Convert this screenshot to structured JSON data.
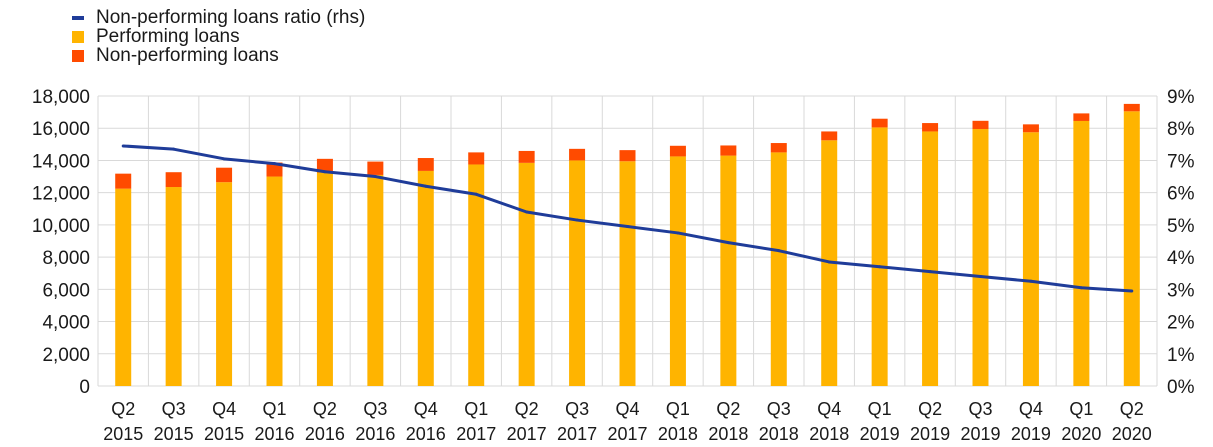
{
  "chart_data": {
    "type": "bar",
    "categories": [
      [
        "Q2",
        "2015"
      ],
      [
        "Q3",
        "2015"
      ],
      [
        "Q4",
        "2015"
      ],
      [
        "Q1",
        "2016"
      ],
      [
        "Q2",
        "2016"
      ],
      [
        "Q3",
        "2016"
      ],
      [
        "Q4",
        "2016"
      ],
      [
        "Q1",
        "2017"
      ],
      [
        "Q2",
        "2017"
      ],
      [
        "Q3",
        "2017"
      ],
      [
        "Q4",
        "2017"
      ],
      [
        "Q1",
        "2018"
      ],
      [
        "Q2",
        "2018"
      ],
      [
        "Q3",
        "2018"
      ],
      [
        "Q4",
        "2018"
      ],
      [
        "Q1",
        "2019"
      ],
      [
        "Q2",
        "2019"
      ],
      [
        "Q3",
        "2019"
      ],
      [
        "Q4",
        "2019"
      ],
      [
        "Q1",
        "2020"
      ],
      [
        "Q2",
        "2020"
      ]
    ],
    "legend": [
      {
        "name": "Non-performing loans ratio (rhs)",
        "kind": "line",
        "color": "#1f3c99"
      },
      {
        "name": "Performing loans",
        "kind": "bar",
        "color": "#ffb400"
      },
      {
        "name": "Non-performing loans",
        "kind": "bar",
        "color": "#ff4b00"
      }
    ],
    "series": [
      {
        "name": "Performing loans",
        "stack": "loans",
        "axis": "left",
        "color": "#ffb400",
        "values": [
          12250,
          12350,
          12650,
          13000,
          13250,
          13100,
          13350,
          13750,
          13850,
          14000,
          13950,
          14250,
          14300,
          14500,
          15250,
          16050,
          15800,
          15950,
          15750,
          16450,
          17050
        ]
      },
      {
        "name": "Non-performing loans",
        "stack": "loans",
        "axis": "left",
        "color": "#ff4b00",
        "values": [
          930,
          920,
          900,
          870,
          850,
          830,
          800,
          750,
          740,
          720,
          690,
          660,
          630,
          580,
          550,
          540,
          520,
          510,
          490,
          470,
          460
        ]
      },
      {
        "name": "Non-performing loans ratio (rhs)",
        "axis": "right",
        "type": "line",
        "color": "#1f3c99",
        "values": [
          7.45,
          7.35,
          7.05,
          6.9,
          6.65,
          6.5,
          6.2,
          5.95,
          5.4,
          5.15,
          4.95,
          4.75,
          4.45,
          4.2,
          3.85,
          3.7,
          3.55,
          3.4,
          3.25,
          3.05,
          2.95
        ]
      }
    ],
    "ylim_left": [
      0,
      18000
    ],
    "yticks_left": [
      "0",
      "2,000",
      "4,000",
      "6,000",
      "8,000",
      "10,000",
      "12,000",
      "14,000",
      "16,000",
      "18,000"
    ],
    "ylim_right": [
      0,
      9
    ],
    "yticks_right": [
      "0%",
      "1%",
      "2%",
      "3%",
      "4%",
      "5%",
      "6%",
      "7%",
      "8%",
      "9%"
    ],
    "grid": true,
    "legend_position": "top-left"
  }
}
